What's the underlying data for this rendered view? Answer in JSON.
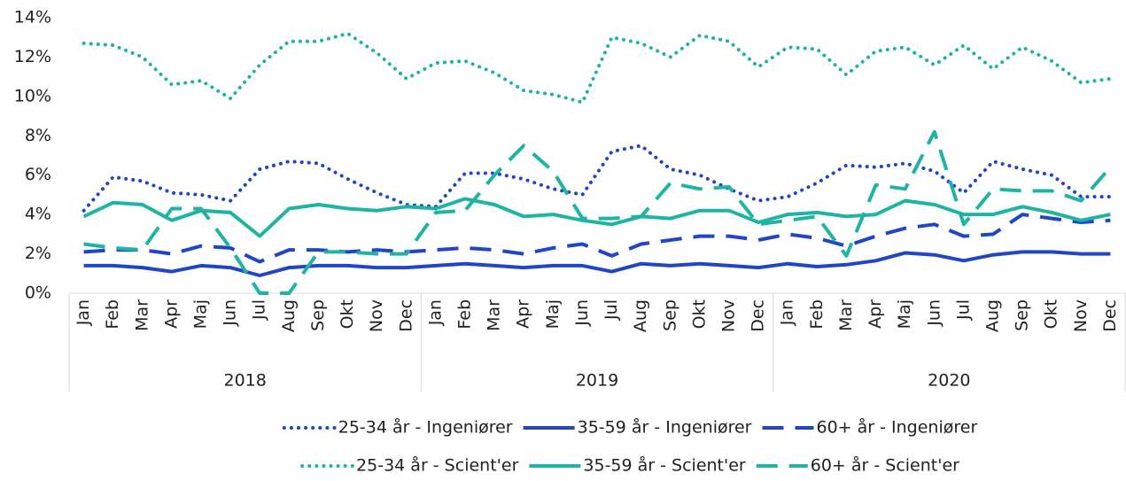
{
  "chart_data": {
    "type": "line",
    "categories": [
      "Jan",
      "Feb",
      "Mar",
      "Apr",
      "Maj",
      "Jun",
      "Jul",
      "Aug",
      "Sep",
      "Okt",
      "Nov",
      "Dec",
      "Jan",
      "Feb",
      "Mar",
      "Apr",
      "Maj",
      "Jun",
      "Jul",
      "Aug",
      "Sep",
      "Okt",
      "Nov",
      "Dec",
      "Jan",
      "Feb",
      "Mar",
      "Apr",
      "Maj",
      "Jun",
      "Jul",
      "Aug",
      "Sep",
      "Okt",
      "Nov",
      "Dec"
    ],
    "years": [
      "2018",
      "2019",
      "2020"
    ],
    "ylim": [
      0,
      14
    ],
    "yticks": [
      {
        "value": 0,
        "label": "0%"
      },
      {
        "value": 2,
        "label": "2%"
      },
      {
        "value": 4,
        "label": "4%"
      },
      {
        "value": 6,
        "label": "6%"
      },
      {
        "value": 8,
        "label": "8%"
      },
      {
        "value": 10,
        "label": "10%"
      },
      {
        "value": 12,
        "label": "12%"
      },
      {
        "value": 14,
        "label": "14%"
      }
    ],
    "grid": false,
    "legend": "bottom",
    "series": [
      {
        "name": "25-34 år - Ingeniører",
        "color": "#1f45c8",
        "dash": "dotted",
        "values": [
          4.2,
          5.9,
          5.7,
          5.1,
          5.0,
          4.7,
          6.3,
          6.7,
          6.6,
          5.8,
          5.1,
          4.5,
          4.4,
          6.1,
          6.1,
          5.8,
          5.3,
          5.0,
          7.2,
          7.5,
          6.3,
          6.0,
          5.3,
          4.7,
          4.9,
          5.6,
          6.5,
          6.4,
          6.6,
          6.2,
          5.1,
          6.7,
          6.3,
          6.0,
          4.9,
          4.9
        ]
      },
      {
        "name": "35-59 år - Ingeniører",
        "color": "#1f45c8",
        "dash": "solid",
        "values": [
          1.4,
          1.4,
          1.3,
          1.1,
          1.4,
          1.3,
          0.9,
          1.3,
          1.4,
          1.4,
          1.3,
          1.3,
          1.4,
          1.5,
          1.4,
          1.3,
          1.4,
          1.4,
          1.1,
          1.5,
          1.4,
          1.5,
          1.4,
          1.3,
          1.5,
          1.35,
          1.45,
          1.65,
          2.05,
          1.95,
          1.65,
          1.95,
          2.1,
          2.1,
          2.0,
          2.0
        ]
      },
      {
        "name": "60+ år - Ingeniører",
        "color": "#1f45c8",
        "dash": "dashed",
        "values": [
          2.1,
          2.2,
          2.2,
          2.0,
          2.4,
          2.3,
          1.6,
          2.2,
          2.2,
          2.1,
          2.2,
          2.1,
          2.2,
          2.3,
          2.2,
          2.0,
          2.3,
          2.5,
          1.9,
          2.5,
          2.7,
          2.9,
          2.9,
          2.7,
          3.0,
          2.8,
          2.4,
          2.9,
          3.3,
          3.5,
          2.9,
          3.0,
          4.0,
          3.8,
          3.6,
          3.7
        ]
      },
      {
        "name": "25-34 år - Scient'er",
        "color": "#1fb3a3",
        "dash": "dotted",
        "values": [
          12.7,
          12.6,
          12.0,
          10.6,
          10.8,
          9.9,
          11.6,
          12.8,
          12.8,
          13.2,
          12.2,
          10.9,
          11.7,
          11.8,
          11.2,
          10.3,
          10.1,
          9.7,
          13.0,
          12.7,
          12.0,
          13.1,
          12.8,
          11.5,
          12.5,
          12.4,
          11.1,
          12.3,
          12.5,
          11.6,
          12.6,
          11.4,
          12.5,
          11.8,
          10.7,
          10.9
        ]
      },
      {
        "name": "35-59 år - Scient'er",
        "color": "#1fb3a3",
        "dash": "solid",
        "values": [
          3.9,
          4.6,
          4.5,
          3.7,
          4.2,
          4.1,
          2.9,
          4.3,
          4.5,
          4.3,
          4.2,
          4.4,
          4.3,
          4.8,
          4.5,
          3.9,
          4.0,
          3.7,
          3.5,
          3.9,
          3.8,
          4.2,
          4.2,
          3.6,
          4.0,
          4.1,
          3.9,
          4.0,
          4.7,
          4.5,
          4.0,
          4.0,
          4.4,
          4.1,
          3.7,
          4.0
        ]
      },
      {
        "name": "60+ år - Scient'er",
        "color": "#1fb3a3",
        "dash": "dashed",
        "values": [
          2.5,
          2.3,
          2.2,
          4.3,
          4.3,
          2.3,
          0.0,
          0.0,
          2.1,
          2.1,
          2.0,
          2.0,
          4.1,
          4.2,
          6.0,
          7.5,
          6.2,
          3.8,
          3.8,
          3.9,
          5.6,
          5.3,
          5.4,
          3.5,
          3.7,
          3.9,
          1.9,
          5.5,
          5.3,
          8.2,
          3.5,
          5.3,
          5.2,
          5.2,
          4.7,
          6.4
        ]
      }
    ]
  }
}
